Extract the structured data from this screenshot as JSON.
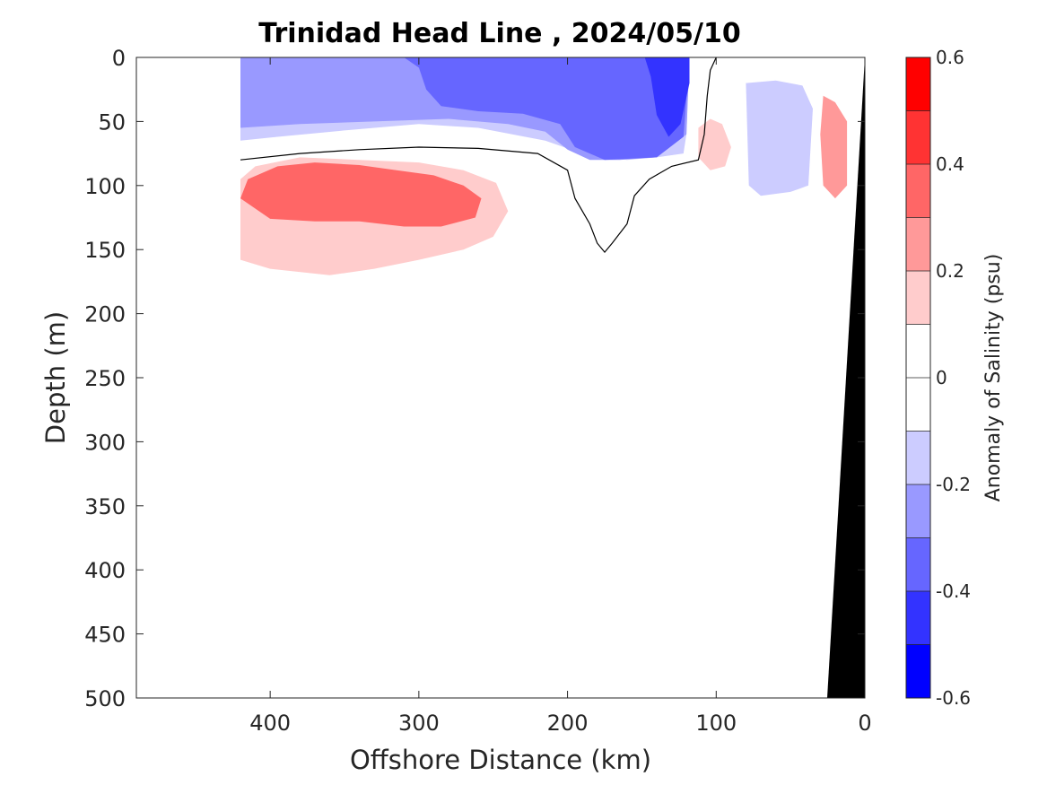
{
  "chart_data": {
    "type": "contour",
    "title": "Trinidad Head Line , 2024/05/10",
    "xlabel": "Offshore Distance (km)",
    "ylabel": "Depth (m)",
    "colorbar_label": "Anomaly of Salinity (psu)",
    "xlim": [
      490,
      0
    ],
    "ylim": [
      0,
      500
    ],
    "x_reversed": true,
    "y_reversed": true,
    "xticks": [
      400,
      300,
      200,
      100,
      0
    ],
    "yticks": [
      0,
      50,
      100,
      150,
      200,
      250,
      300,
      350,
      400,
      450,
      500
    ],
    "clim": [
      -0.6,
      0.6
    ],
    "color_levels": [
      {
        "range": [
          0.5,
          0.6
        ],
        "color": "#ff0000"
      },
      {
        "range": [
          0.4,
          0.5
        ],
        "color": "#ff3333"
      },
      {
        "range": [
          0.3,
          0.4
        ],
        "color": "#ff6666"
      },
      {
        "range": [
          0.2,
          0.3
        ],
        "color": "#ff9999"
      },
      {
        "range": [
          0.1,
          0.2
        ],
        "color": "#ffcccc"
      },
      {
        "range": [
          0.0,
          0.1
        ],
        "color": "#ffffff"
      },
      {
        "range": [
          -0.1,
          0.0
        ],
        "color": "#ffffff"
      },
      {
        "range": [
          -0.2,
          -0.1
        ],
        "color": "#ccccff"
      },
      {
        "range": [
          -0.3,
          -0.2
        ],
        "color": "#9999ff"
      },
      {
        "range": [
          -0.4,
          -0.3
        ],
        "color": "#6666ff"
      },
      {
        "range": [
          -0.5,
          -0.4
        ],
        "color": "#3333ff"
      },
      {
        "range": [
          -0.6,
          -0.5
        ],
        "color": "#0000ff"
      }
    ],
    "colorbar_ticks": [
      0.6,
      0.4,
      0.2,
      0,
      -0.2,
      -0.4,
      -0.6
    ],
    "data_extent_km": [
      0,
      420
    ],
    "bathymetry_color": "#000000",
    "regions": [
      {
        "name": "fresh-core-surface",
        "anomaly": -0.2,
        "polygon": [
          [
            420,
            0
          ],
          [
            420,
            65
          ],
          [
            395,
            62
          ],
          [
            350,
            57
          ],
          [
            300,
            52
          ],
          [
            260,
            55
          ],
          [
            215,
            65
          ],
          [
            185,
            77
          ],
          [
            160,
            80
          ],
          [
            140,
            78
          ],
          [
            122,
            75
          ],
          [
            120,
            60
          ],
          [
            118,
            0
          ]
        ]
      },
      {
        "name": "fresh-nearshore",
        "anomaly": -0.15,
        "polygon": [
          [
            80,
            20
          ],
          [
            78,
            100
          ],
          [
            70,
            108
          ],
          [
            50,
            105
          ],
          [
            38,
            100
          ],
          [
            35,
            40
          ],
          [
            42,
            22
          ],
          [
            60,
            18
          ]
        ]
      },
      {
        "name": "fresh-lobe-surface",
        "anomaly": -0.25,
        "polygon": [
          [
            420,
            0
          ],
          [
            420,
            55
          ],
          [
            380,
            52
          ],
          [
            330,
            50
          ],
          [
            280,
            48
          ],
          [
            240,
            52
          ],
          [
            215,
            58
          ],
          [
            200,
            72
          ],
          [
            185,
            80
          ],
          [
            165,
            80
          ],
          [
            140,
            78
          ],
          [
            120,
            60
          ],
          [
            118,
            0
          ]
        ]
      },
      {
        "name": "fresh-core-mid",
        "anomaly": -0.35,
        "polygon": [
          [
            310,
            0
          ],
          [
            300,
            8
          ],
          [
            295,
            25
          ],
          [
            285,
            38
          ],
          [
            260,
            42
          ],
          [
            230,
            44
          ],
          [
            205,
            52
          ],
          [
            195,
            70
          ],
          [
            175,
            80
          ],
          [
            140,
            78
          ],
          [
            122,
            62
          ],
          [
            118,
            0
          ]
        ]
      },
      {
        "name": "fresh-core-strong",
        "anomaly": -0.45,
        "polygon": [
          [
            148,
            0
          ],
          [
            144,
            15
          ],
          [
            140,
            45
          ],
          [
            132,
            62
          ],
          [
            124,
            52
          ],
          [
            118,
            20
          ],
          [
            118,
            0
          ]
        ]
      },
      {
        "name": "salty-lens",
        "anomaly": 0.35,
        "polygon": [
          [
            420,
            110
          ],
          [
            415,
            95
          ],
          [
            395,
            85
          ],
          [
            370,
            82
          ],
          [
            340,
            84
          ],
          [
            315,
            88
          ],
          [
            290,
            92
          ],
          [
            270,
            100
          ],
          [
            258,
            110
          ],
          [
            262,
            125
          ],
          [
            285,
            132
          ],
          [
            310,
            132
          ],
          [
            340,
            128
          ],
          [
            370,
            128
          ],
          [
            400,
            126
          ]
        ]
      },
      {
        "name": "salty-lens-halo",
        "anomaly": 0.15,
        "polygon": [
          [
            420,
            95
          ],
          [
            410,
            85
          ],
          [
            380,
            78
          ],
          [
            340,
            80
          ],
          [
            300,
            82
          ],
          [
            270,
            88
          ],
          [
            248,
            98
          ],
          [
            240,
            120
          ],
          [
            250,
            140
          ],
          [
            270,
            150
          ],
          [
            300,
            158
          ],
          [
            330,
            165
          ],
          [
            360,
            170
          ],
          [
            400,
            165
          ],
          [
            420,
            158
          ]
        ]
      },
      {
        "name": "salty-nearshore",
        "anomaly": 0.25,
        "polygon": [
          [
            28,
            30
          ],
          [
            20,
            35
          ],
          [
            12,
            50
          ],
          [
            12,
            100
          ],
          [
            20,
            110
          ],
          [
            28,
            100
          ],
          [
            30,
            60
          ]
        ]
      },
      {
        "name": "salty-patch",
        "anomaly": 0.2,
        "polygon": [
          [
            112,
            55
          ],
          [
            104,
            48
          ],
          [
            96,
            52
          ],
          [
            90,
            70
          ],
          [
            94,
            85
          ],
          [
            104,
            88
          ],
          [
            112,
            78
          ]
        ]
      }
    ],
    "zero_contour": [
      [
        420,
        80
      ],
      [
        380,
        75
      ],
      [
        340,
        72
      ],
      [
        300,
        70
      ],
      [
        260,
        71
      ],
      [
        220,
        75
      ],
      [
        200,
        88
      ],
      [
        195,
        110
      ],
      [
        185,
        130
      ],
      [
        180,
        145
      ],
      [
        175,
        152
      ],
      [
        170,
        145
      ],
      [
        160,
        130
      ],
      [
        155,
        108
      ],
      [
        145,
        95
      ],
      [
        130,
        85
      ],
      [
        112,
        80
      ],
      [
        108,
        60
      ],
      [
        106,
        30
      ],
      [
        104,
        10
      ],
      [
        100,
        0
      ]
    ]
  }
}
